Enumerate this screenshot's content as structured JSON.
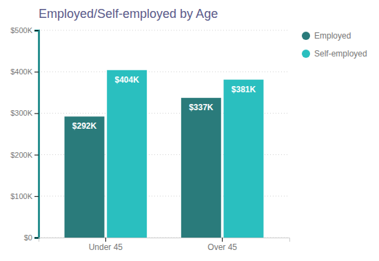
{
  "chart_data": {
    "type": "bar",
    "title": "Employed/Self-employed by Age",
    "categories": [
      "Under 45",
      "Over 45"
    ],
    "series": [
      {
        "name": "Employed",
        "color": "#2a7b7b",
        "values": [
          292000,
          337000
        ],
        "value_labels": [
          "$292K",
          "$337K"
        ]
      },
      {
        "name": "Self-employed",
        "color": "#2abfbf",
        "values": [
          404000,
          381000
        ],
        "value_labels": [
          "$404K",
          "$381K"
        ]
      }
    ],
    "ylim": [
      0,
      500000
    ],
    "yticks": [
      {
        "value": 0,
        "label": "$0"
      },
      {
        "value": 100000,
        "label": "$100K"
      },
      {
        "value": 200000,
        "label": "$200K"
      },
      {
        "value": 300000,
        "label": "$300K"
      },
      {
        "value": 400000,
        "label": "$400K"
      },
      {
        "value": 500000,
        "label": "$500K"
      }
    ],
    "grid": true,
    "legend": "right",
    "data_labels": true
  }
}
